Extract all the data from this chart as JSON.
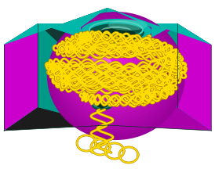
{
  "fig_width": 2.74,
  "fig_height": 2.25,
  "dpi": 100,
  "bg_color": "#ffffff",
  "teal": "#00b8aa",
  "teal_dark": "#007a6e",
  "teal_inner": "#009988",
  "teal_top_highlight": "#88eeee",
  "magenta": "#cc00cc",
  "magenta_side": "#aa00aa",
  "black_face": "#1c1c1c",
  "yellow": "#ffdd00",
  "yellow_dark": "#b38600",
  "hole_dark": "#003322",
  "hole_teal": "#44ccbb"
}
